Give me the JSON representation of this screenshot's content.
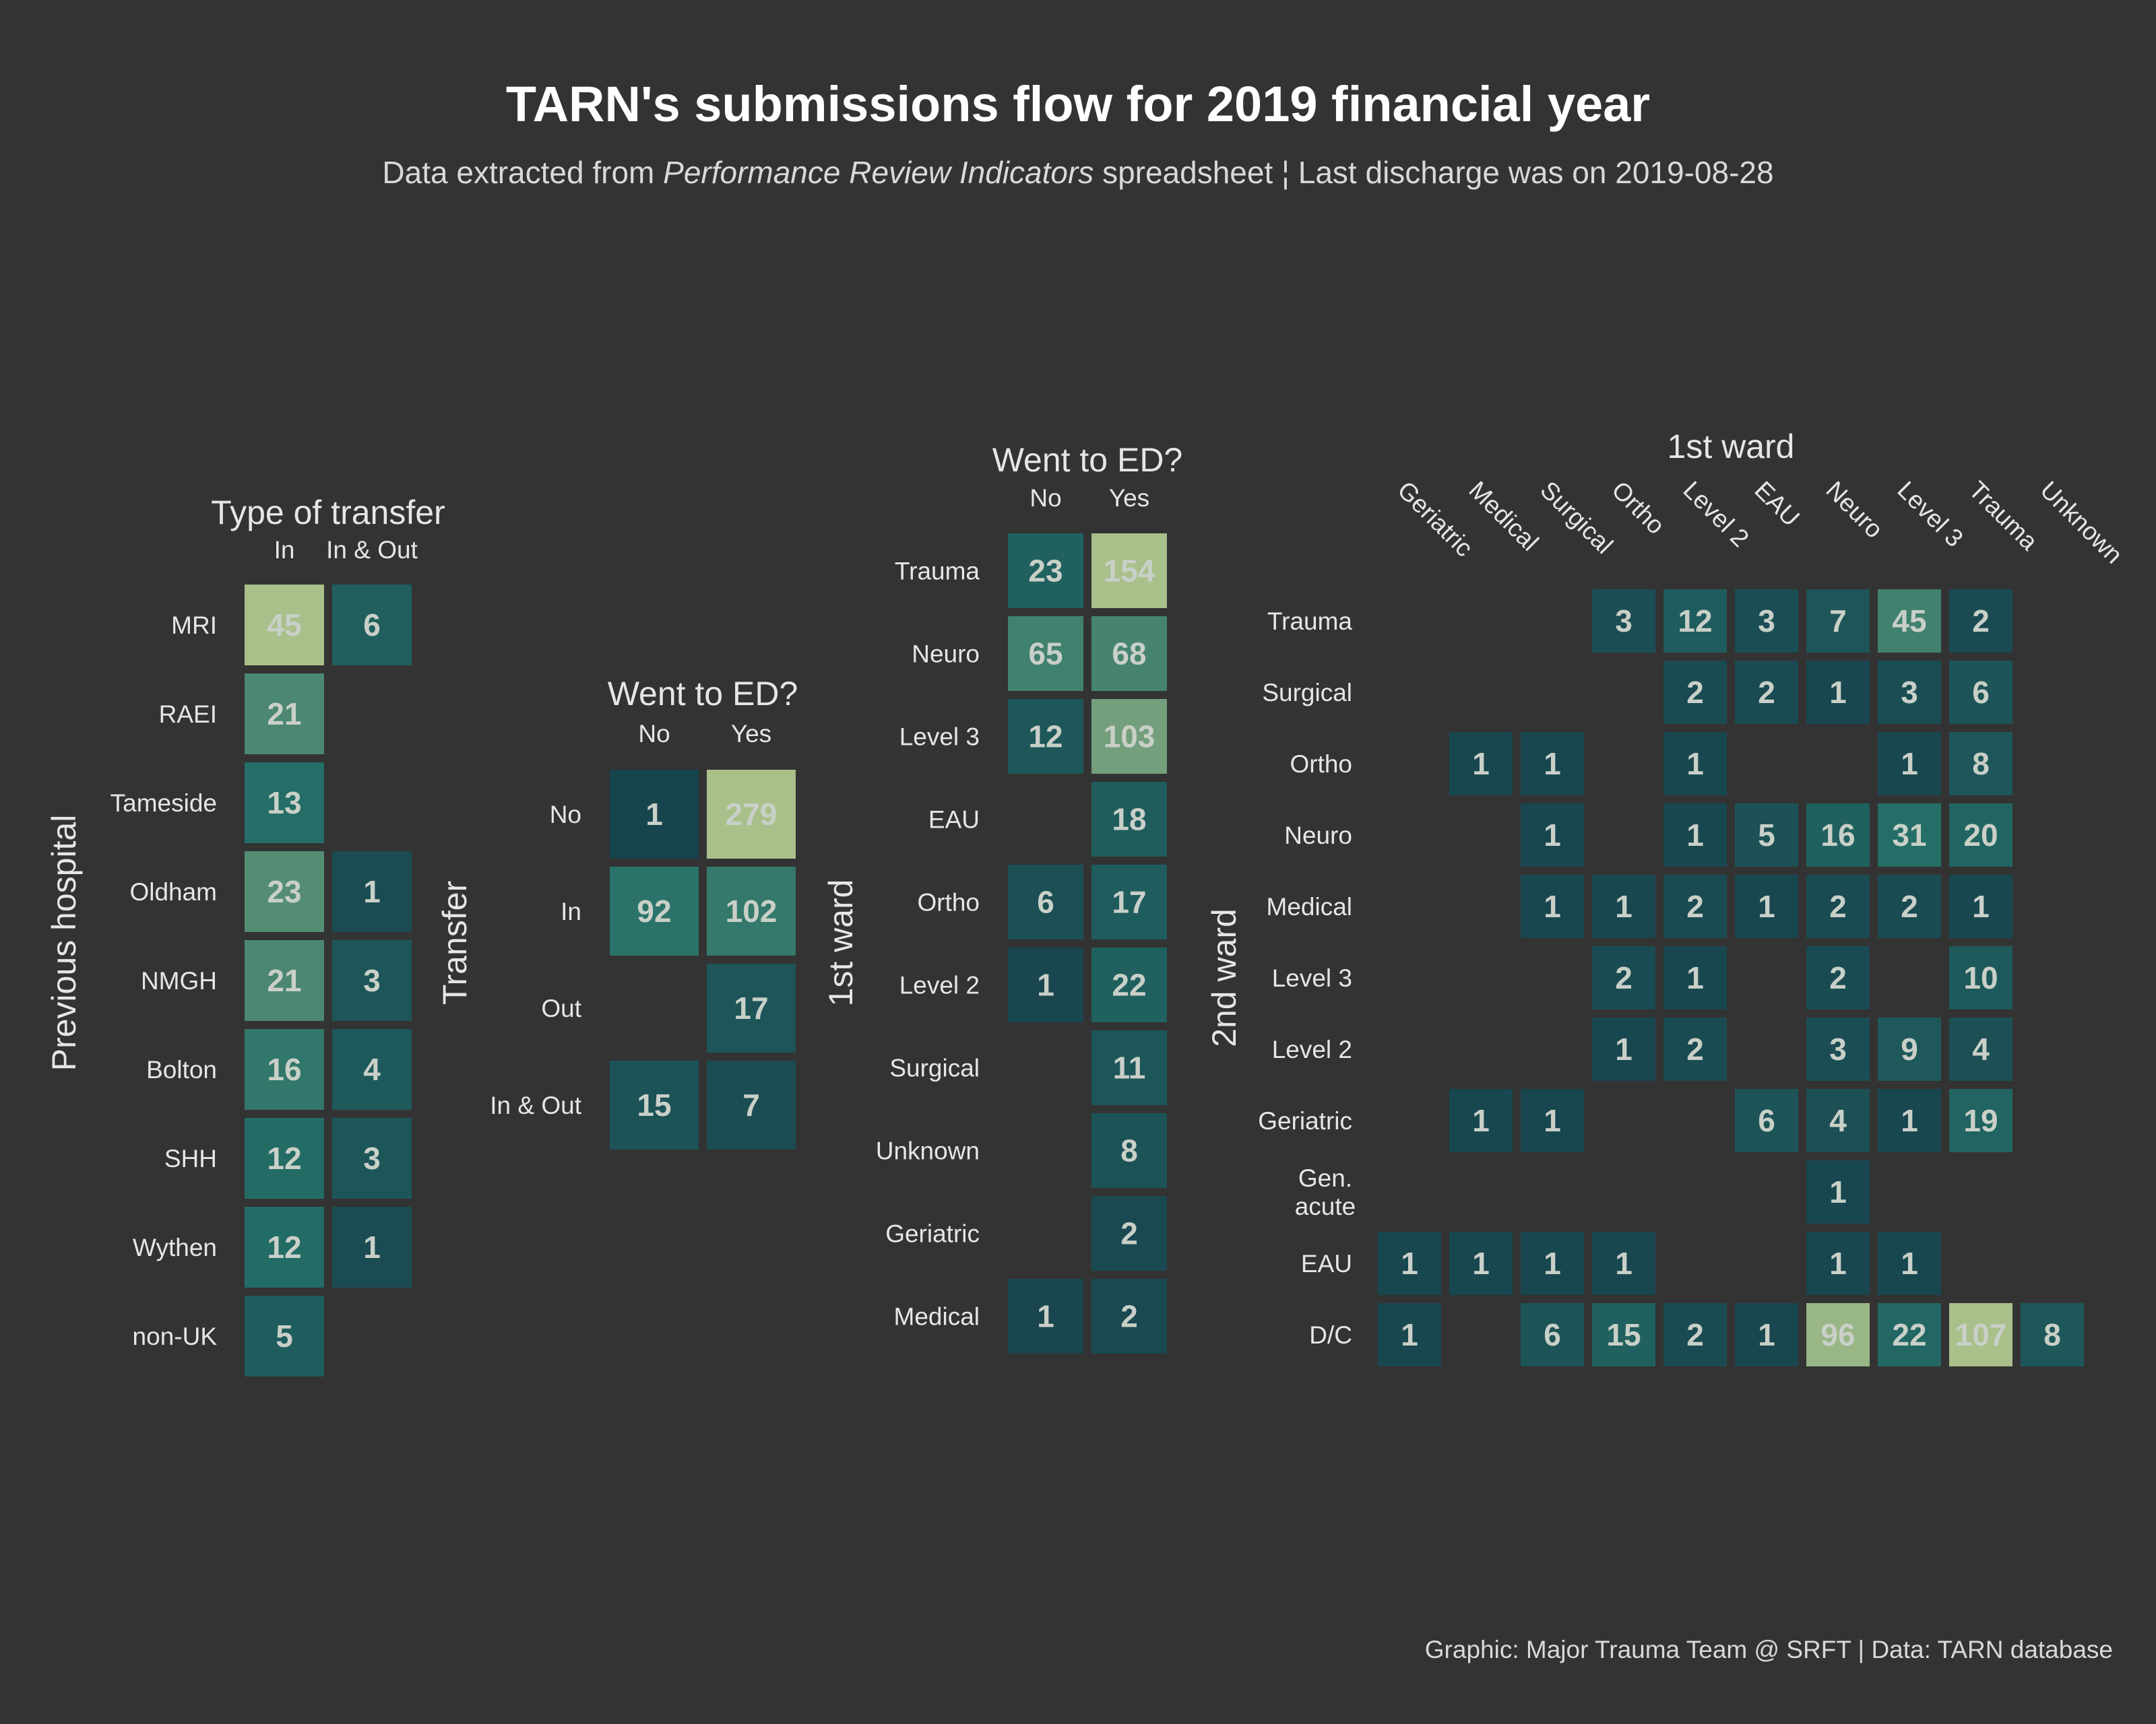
{
  "title": "TARN's submissions flow for 2019 financial year",
  "subtitle": {
    "part1": "Data extracted from ",
    "italic": "Performance Review Indicators",
    "part2": " spreadsheet ¦ Last discharge was  on 2019-08-28"
  },
  "caption": "Graphic: Major Trauma Team @ SRFT | Data: TARN database",
  "colors": {
    "background": "#333333",
    "scale_low": "#173f4b",
    "scale_mid": "#246f68",
    "scale_high": "#a9c08a",
    "label": "#c9d0c8"
  },
  "chart_data": [
    {
      "type": "heatmap",
      "top_title": "Type of transfer",
      "ylabel": "Previous hospital",
      "columns": [
        "In",
        "In & Out"
      ],
      "rows": [
        "MRI",
        "RAEI",
        "Tameside",
        "Oldham",
        "NMGH",
        "Bolton",
        "SHH",
        "Wythen",
        "non-UK"
      ],
      "values": [
        [
          45,
          6
        ],
        [
          21,
          null
        ],
        [
          13,
          null
        ],
        [
          23,
          1
        ],
        [
          21,
          3
        ],
        [
          16,
          4
        ],
        [
          12,
          3
        ],
        [
          12,
          1
        ],
        [
          5,
          null
        ]
      ]
    },
    {
      "type": "heatmap",
      "top_title": "Went to ED?",
      "ylabel": "Transfer",
      "columns": [
        "No",
        "Yes"
      ],
      "rows": [
        "No",
        "In",
        "Out",
        "In & Out"
      ],
      "values": [
        [
          1,
          279
        ],
        [
          92,
          102
        ],
        [
          null,
          17
        ],
        [
          15,
          7
        ]
      ]
    },
    {
      "type": "heatmap",
      "top_title": "Went to ED?",
      "ylabel": "1st ward",
      "columns": [
        "No",
        "Yes"
      ],
      "rows": [
        "Trauma",
        "Neuro",
        "Level 3",
        "EAU",
        "Ortho",
        "Level 2",
        "Surgical",
        "Unknown",
        "Geriatric",
        "Medical"
      ],
      "values": [
        [
          23,
          154
        ],
        [
          65,
          68
        ],
        [
          12,
          103
        ],
        [
          null,
          18
        ],
        [
          6,
          17
        ],
        [
          1,
          22
        ],
        [
          null,
          11
        ],
        [
          null,
          8
        ],
        [
          null,
          2
        ],
        [
          1,
          2
        ]
      ]
    },
    {
      "type": "heatmap",
      "top_title": "1st ward",
      "ylabel": "2nd ward",
      "columns": [
        "Geriatric",
        "Medical",
        "Surgical",
        "Ortho",
        "Level 2",
        "EAU",
        "Neuro",
        "Level 3",
        "Trauma",
        "Unknown"
      ],
      "rows": [
        "Trauma",
        "Surgical",
        "Ortho",
        "Neuro",
        "Medical",
        "Level 3",
        "Level 2",
        "Geriatric",
        "Gen.\nacute",
        "EAU",
        "D/C"
      ],
      "values": [
        [
          null,
          null,
          null,
          3,
          12,
          3,
          7,
          45,
          2,
          null
        ],
        [
          null,
          null,
          null,
          null,
          2,
          2,
          1,
          3,
          6,
          null
        ],
        [
          null,
          1,
          1,
          null,
          1,
          null,
          null,
          1,
          8,
          null
        ],
        [
          null,
          null,
          1,
          null,
          1,
          5,
          16,
          31,
          20,
          null
        ],
        [
          null,
          null,
          1,
          1,
          2,
          1,
          2,
          2,
          1,
          null
        ],
        [
          null,
          null,
          null,
          2,
          1,
          null,
          2,
          null,
          10,
          null
        ],
        [
          null,
          null,
          null,
          1,
          2,
          null,
          3,
          9,
          4,
          null
        ],
        [
          null,
          1,
          1,
          null,
          null,
          6,
          4,
          1,
          19,
          null
        ],
        [
          null,
          null,
          null,
          null,
          null,
          null,
          1,
          null,
          null,
          null
        ],
        [
          1,
          1,
          1,
          1,
          null,
          null,
          1,
          1,
          null,
          null
        ],
        [
          1,
          null,
          6,
          15,
          2,
          1,
          96,
          22,
          107,
          8
        ]
      ]
    }
  ]
}
